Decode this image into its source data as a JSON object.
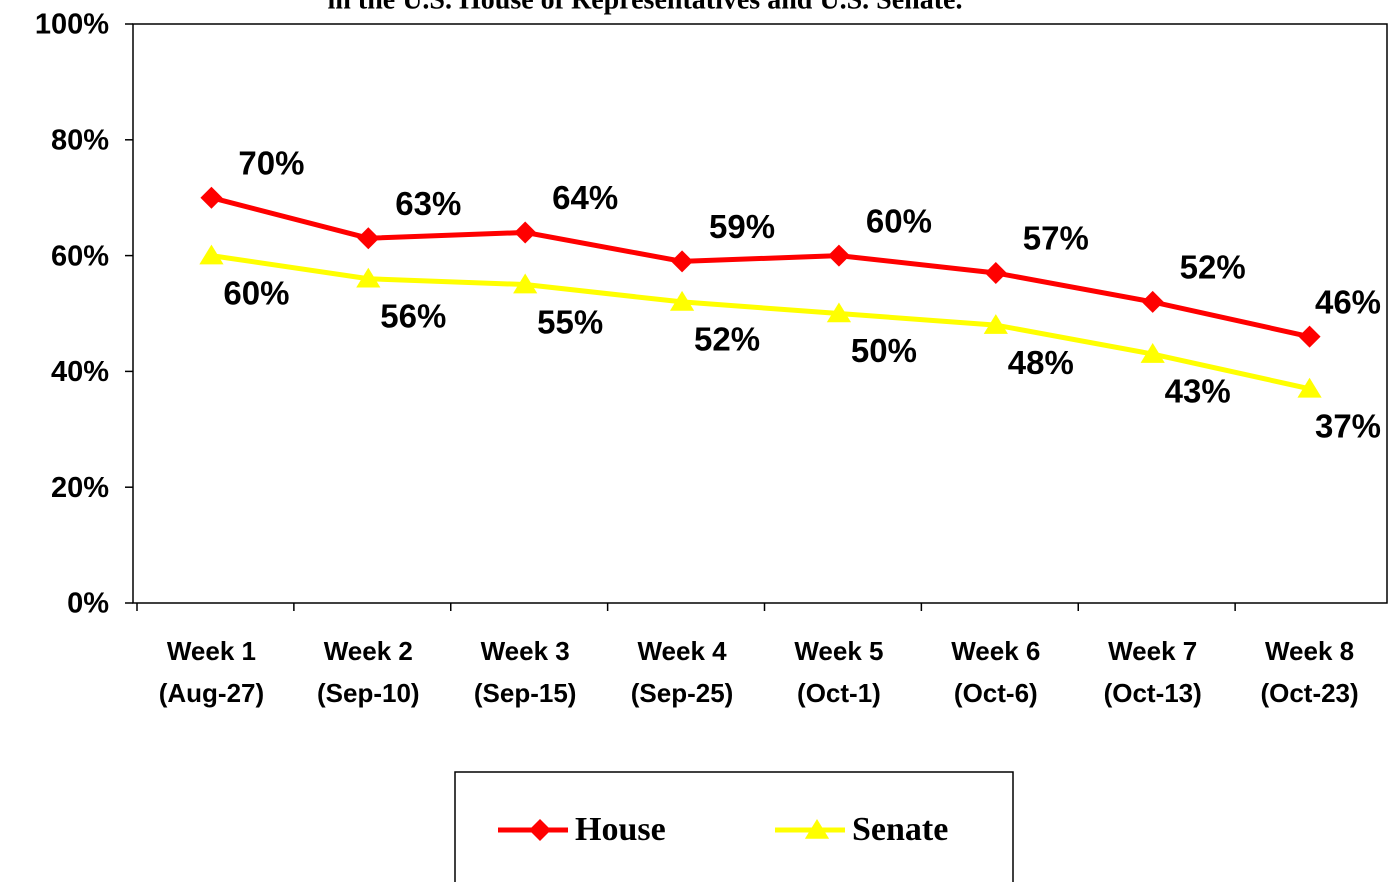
{
  "chart_data": {
    "type": "line",
    "title": "in the U.S. House of Representatives and U.S. Senate.",
    "categories": [
      [
        "Week 1",
        "(Aug-27)"
      ],
      [
        "Week 2",
        "(Sep-10)"
      ],
      [
        "Week 3",
        "(Sep-15)"
      ],
      [
        "Week 4",
        "(Sep-25)"
      ],
      [
        "Week 5",
        "(Oct-1)"
      ],
      [
        "Week 6",
        "(Oct-6)"
      ],
      [
        "Week 7",
        "(Oct-13)"
      ],
      [
        "Week 8",
        "(Oct-23)"
      ]
    ],
    "series": [
      {
        "name": "House",
        "color": "#ff0000",
        "marker": "diamond",
        "values": [
          70,
          63,
          64,
          59,
          60,
          57,
          52,
          46
        ],
        "value_labels": [
          "70%",
          "63%",
          "64%",
          "59%",
          "60%",
          "57%",
          "52%",
          "46%"
        ]
      },
      {
        "name": "Senate",
        "color": "#ffff00",
        "marker": "triangle",
        "values": [
          60,
          56,
          55,
          52,
          50,
          48,
          43,
          37
        ],
        "value_labels": [
          "60%",
          "56%",
          "55%",
          "52%",
          "50%",
          "48%",
          "43%",
          "37%"
        ]
      }
    ],
    "ylim": [
      0,
      100
    ],
    "yticks": [
      {
        "value": 0,
        "label": "0%"
      },
      {
        "value": 20,
        "label": "20%"
      },
      {
        "value": 40,
        "label": "40%"
      },
      {
        "value": 60,
        "label": "60%"
      },
      {
        "value": 80,
        "label": "80%"
      },
      {
        "value": 100,
        "label": "100%"
      }
    ],
    "grid": false,
    "legend": "bottom"
  }
}
